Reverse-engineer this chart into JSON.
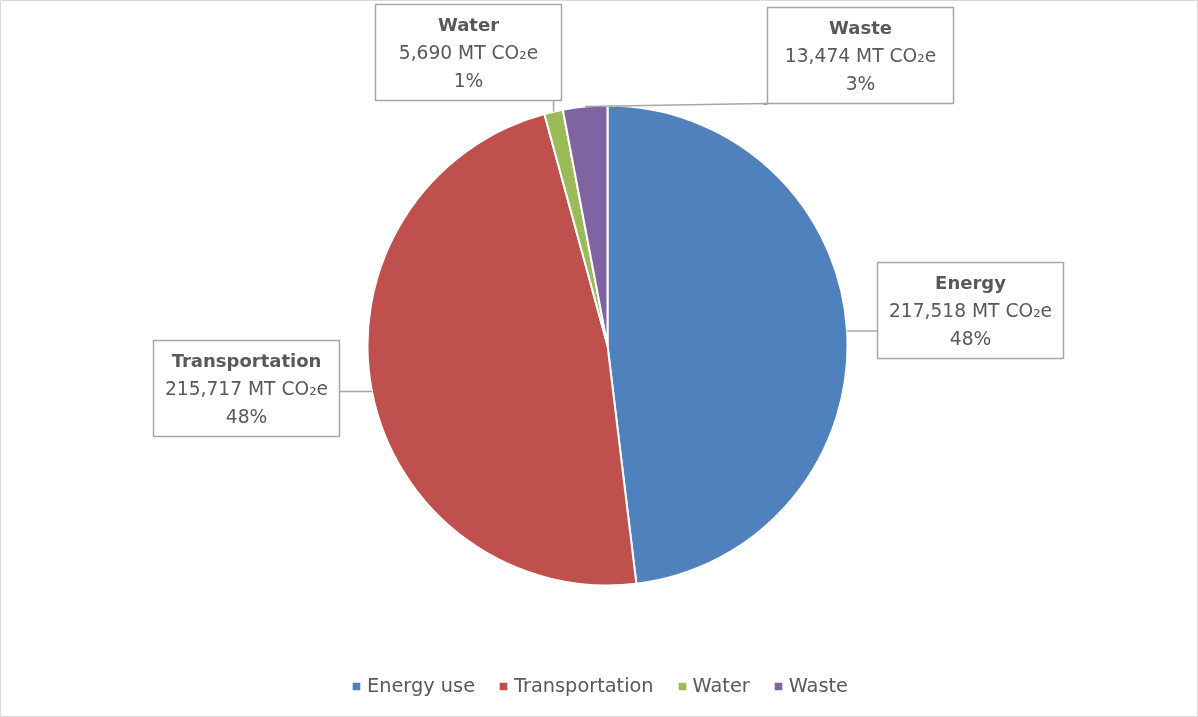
{
  "chart_data": {
    "type": "pie",
    "categories": [
      "Energy use",
      "Transportation",
      "Water",
      "Waste"
    ],
    "values": [
      217518,
      215717,
      5690,
      13474
    ],
    "colors": [
      "#4f81bd",
      "#c0504d",
      "#9bbb59",
      "#8064a2"
    ],
    "value_labels": [
      "Energy\n217,518 MT CO₂e\n48%",
      "Transportation\n215,717 MT CO₂e\n48%",
      "Water\n5,690 MT CO₂e\n1%",
      "Waste\n13,474 MT CO₂e\n3%"
    ],
    "legend": "bottom"
  }
}
